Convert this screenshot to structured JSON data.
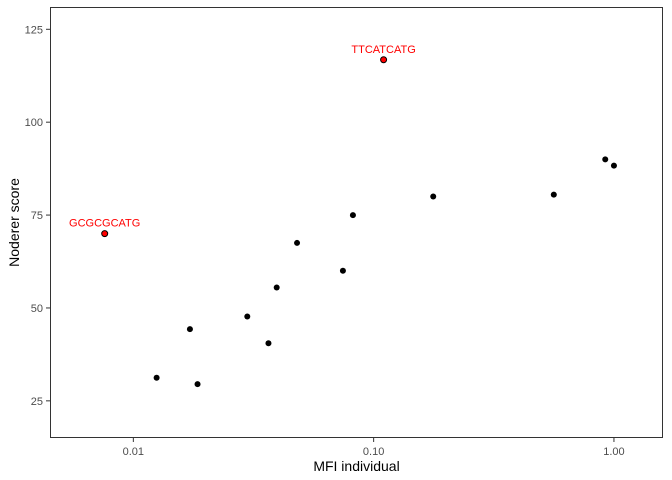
{
  "chart_data": {
    "type": "scatter",
    "xlabel": "MFI individual",
    "ylabel": "Noderer score",
    "x_scale": "log10",
    "xlim": [
      0.0045,
      1.6
    ],
    "ylim": [
      15,
      131
    ],
    "x_ticks": [
      0.01,
      0.1,
      1.0
    ],
    "x_tick_labels": [
      "0.01",
      "0.10",
      "1.00"
    ],
    "y_ticks": [
      25,
      50,
      75,
      100,
      125
    ],
    "y_tick_labels": [
      "25",
      "50",
      "75",
      "100",
      "125"
    ],
    "grid": false,
    "points": [
      {
        "x": 0.0125,
        "y": 31.2
      },
      {
        "x": 0.0185,
        "y": 29.5
      },
      {
        "x": 0.0172,
        "y": 44.3
      },
      {
        "x": 0.0298,
        "y": 47.7
      },
      {
        "x": 0.0365,
        "y": 40.5
      },
      {
        "x": 0.0395,
        "y": 55.5
      },
      {
        "x": 0.048,
        "y": 67.5
      },
      {
        "x": 0.0745,
        "y": 60.0
      },
      {
        "x": 0.082,
        "y": 75.0
      },
      {
        "x": 0.177,
        "y": 80.0
      },
      {
        "x": 0.562,
        "y": 80.5
      },
      {
        "x": 0.92,
        "y": 90.0
      },
      {
        "x": 1.0,
        "y": 88.3
      }
    ],
    "highlighted": [
      {
        "x": 0.0076,
        "y": 70.0,
        "label": "GCGCGCATG"
      },
      {
        "x": 0.11,
        "y": 116.8,
        "label": "TTCATCATG"
      }
    ],
    "colors": {
      "point": "#000000",
      "highlight_fill": "#ff0000",
      "highlight_text": "#ff0000",
      "panel_border": "#333333",
      "tick_text": "#4d4d4d"
    }
  }
}
